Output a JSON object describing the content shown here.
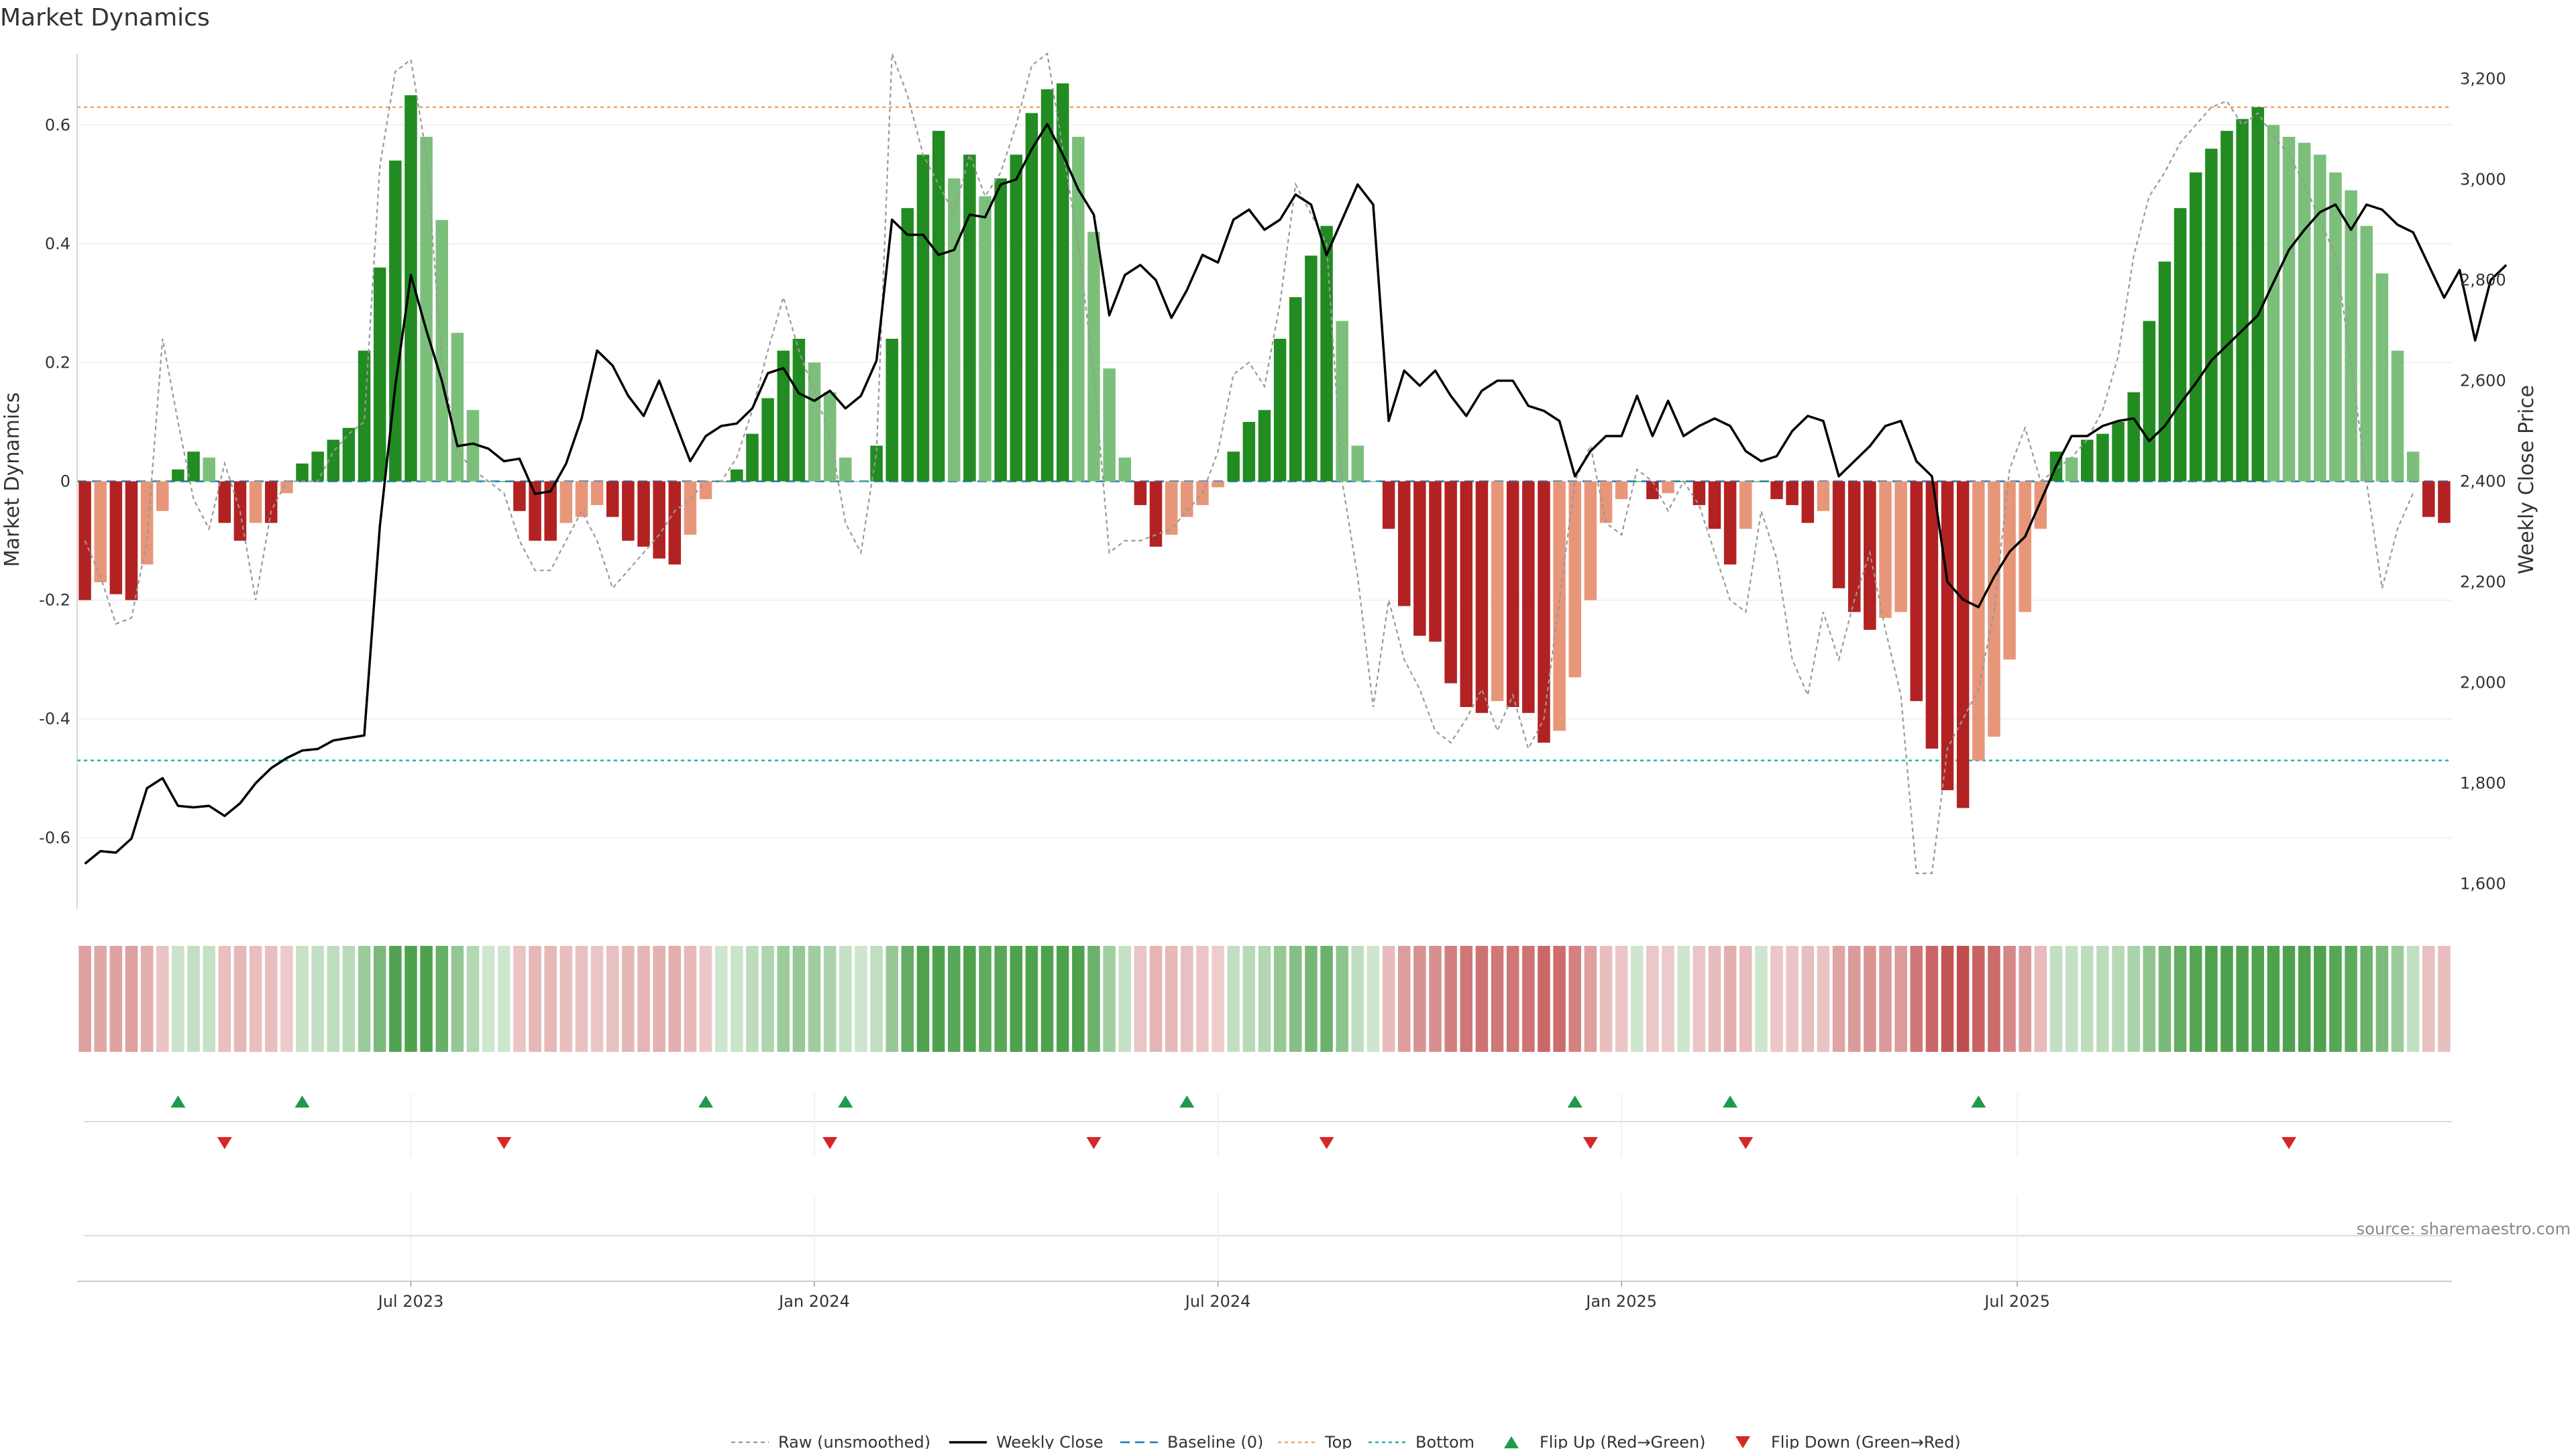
{
  "chart_data": {
    "type": "bar",
    "title": "Market Dynamics",
    "ylabel": "Market Dynamics",
    "y2label": "Weekly Close Price",
    "ylim": [
      -0.72,
      0.72
    ],
    "y2lim": [
      1550,
      3250
    ],
    "yticks": [
      "-0.6",
      "-0.4",
      "-0.2",
      "0",
      "0.2",
      "0.4",
      "0.6"
    ],
    "y2ticks": [
      "1,600",
      "1,800",
      "2,000",
      "2,200",
      "2,400",
      "2,600",
      "2,800",
      "3,000",
      "3,200"
    ],
    "xticks": [
      "Jul 2023",
      "Jan 2024",
      "Jul 2024",
      "Jan 2025",
      "Jul 2025"
    ],
    "top_level": 0.63,
    "bottom_level": -0.47,
    "baseline": 0,
    "momentum": [
      -0.2,
      -0.17,
      -0.19,
      -0.2,
      -0.14,
      -0.05,
      0.02,
      0.05,
      0.04,
      -0.07,
      -0.1,
      -0.07,
      -0.07,
      -0.02,
      0.03,
      0.05,
      0.07,
      0.09,
      0.22,
      0.36,
      0.54,
      0.65,
      0.58,
      0.44,
      0.25,
      0.12,
      0.0,
      0.0,
      -0.05,
      -0.1,
      -0.1,
      -0.07,
      -0.06,
      -0.04,
      -0.06,
      -0.1,
      -0.11,
      -0.13,
      -0.14,
      -0.09,
      -0.03,
      0.0,
      0.02,
      0.08,
      0.14,
      0.22,
      0.24,
      0.2,
      0.15,
      0.04,
      0.0,
      0.06,
      0.24,
      0.46,
      0.55,
      0.59,
      0.51,
      0.55,
      0.48,
      0.51,
      0.55,
      0.62,
      0.66,
      0.67,
      0.58,
      0.42,
      0.19,
      0.04,
      -0.04,
      -0.11,
      -0.09,
      -0.06,
      -0.04,
      -0.01,
      0.05,
      0.1,
      0.12,
      0.24,
      0.31,
      0.38,
      0.43,
      0.27,
      0.06,
      0.0,
      -0.08,
      -0.21,
      -0.26,
      -0.27,
      -0.34,
      -0.38,
      -0.39,
      -0.37,
      -0.38,
      -0.39,
      -0.44,
      -0.42,
      -0.33,
      -0.2,
      -0.07,
      -0.03,
      0.0,
      -0.03,
      -0.02,
      0.0,
      -0.04,
      -0.08,
      -0.14,
      -0.08,
      0.0,
      -0.03,
      -0.04,
      -0.07,
      -0.05,
      -0.18,
      -0.22,
      -0.25,
      -0.23,
      -0.22,
      -0.37,
      -0.45,
      -0.52,
      -0.55,
      -0.47,
      -0.43,
      -0.3,
      -0.22,
      -0.08,
      0.05,
      0.04,
      0.07,
      0.08,
      0.1,
      0.15,
      0.27,
      0.37,
      0.46,
      0.52,
      0.56,
      0.59,
      0.61,
      0.63,
      0.6,
      0.58,
      0.57,
      0.55,
      0.52,
      0.49,
      0.43,
      0.35,
      0.22,
      0.05,
      -0.06,
      -0.07
    ],
    "raw": [
      -0.1,
      -0.16,
      -0.24,
      -0.23,
      -0.1,
      0.24,
      0.1,
      -0.03,
      -0.08,
      0.03,
      -0.05,
      -0.2,
      -0.05,
      0.0,
      0.0,
      0.0,
      0.05,
      0.08,
      0.1,
      0.53,
      0.69,
      0.71,
      0.55,
      0.2,
      0.05,
      0.02,
      0.0,
      -0.02,
      -0.1,
      -0.15,
      -0.15,
      -0.1,
      -0.05,
      -0.1,
      -0.18,
      -0.15,
      -0.12,
      -0.09,
      -0.05,
      -0.03,
      0.0,
      0.0,
      0.04,
      0.12,
      0.22,
      0.31,
      0.22,
      0.15,
      0.08,
      -0.07,
      -0.12,
      0.05,
      0.72,
      0.65,
      0.55,
      0.5,
      0.45,
      0.55,
      0.48,
      0.52,
      0.6,
      0.7,
      0.72,
      0.56,
      0.4,
      0.18,
      -0.12,
      -0.1,
      -0.1,
      -0.09,
      -0.08,
      -0.05,
      -0.02,
      0.05,
      0.18,
      0.2,
      0.16,
      0.3,
      0.5,
      0.45,
      0.4,
      0.0,
      -0.16,
      -0.38,
      -0.2,
      -0.3,
      -0.35,
      -0.42,
      -0.44,
      -0.4,
      -0.35,
      -0.42,
      -0.36,
      -0.45,
      -0.4,
      -0.2,
      0.0,
      0.06,
      -0.07,
      -0.09,
      0.02,
      0.0,
      -0.05,
      0.0,
      -0.04,
      -0.12,
      -0.2,
      -0.22,
      -0.05,
      -0.13,
      -0.3,
      -0.36,
      -0.22,
      -0.3,
      -0.2,
      -0.12,
      -0.25,
      -0.36,
      -0.66,
      -0.66,
      -0.45,
      -0.4,
      -0.35,
      -0.22,
      0.02,
      0.09,
      0.0,
      0.02,
      0.04,
      0.07,
      0.12,
      0.21,
      0.38,
      0.48,
      0.52,
      0.57,
      0.6,
      0.63,
      0.64,
      0.6,
      0.62,
      0.58,
      0.55,
      0.5,
      0.44,
      0.38,
      0.2,
      0.0,
      -0.18,
      -0.08,
      -0.02
    ],
    "weekly_close": [
      1640,
      1665,
      1662,
      1690,
      1790,
      1810,
      1755,
      1752,
      1755,
      1735,
      1760,
      1800,
      1830,
      1850,
      1865,
      1868,
      1885,
      1890,
      1895,
      2310,
      2590,
      2810,
      2700,
      2600,
      2470,
      2475,
      2465,
      2440,
      2445,
      2375,
      2380,
      2435,
      2525,
      2660,
      2630,
      2570,
      2530,
      2600,
      2520,
      2440,
      2490,
      2510,
      2515,
      2545,
      2615,
      2625,
      2575,
      2560,
      2580,
      2545,
      2570,
      2640,
      2920,
      2890,
      2890,
      2850,
      2860,
      2930,
      2925,
      2990,
      3000,
      3060,
      3110,
      3050,
      2980,
      2930,
      2730,
      2810,
      2830,
      2800,
      2725,
      2780,
      2850,
      2835,
      2920,
      2940,
      2900,
      2920,
      2970,
      2950,
      2850,
      2920,
      2990,
      2950,
      2520,
      2620,
      2590,
      2620,
      2570,
      2530,
      2580,
      2600,
      2600,
      2550,
      2540,
      2520,
      2410,
      2460,
      2490,
      2490,
      2570,
      2490,
      2560,
      2490,
      2510,
      2525,
      2510,
      2460,
      2440,
      2450,
      2500,
      2530,
      2520,
      2410,
      2440,
      2470,
      2510,
      2520,
      2440,
      2410,
      2200,
      2165,
      2150,
      2210,
      2260,
      2290,
      2360,
      2430,
      2490,
      2490,
      2510,
      2520,
      2525,
      2480,
      2510,
      2555,
      2595,
      2640,
      2670,
      2700,
      2730,
      2795,
      2860,
      2900,
      2935,
      2950,
      2900,
      2950,
      2940,
      2910,
      2895,
      2830,
      2765,
      2820,
      2680,
      2800,
      2830
    ],
    "flip_up_idx": [
      6,
      14,
      40,
      49,
      71,
      96,
      106,
      122
    ],
    "flip_down_idx": [
      9,
      27,
      48,
      65,
      80,
      97,
      107,
      142
    ],
    "legend": [
      "Raw (unsmoothed)",
      "Weekly Close",
      "Baseline (0)",
      "Top",
      "Bottom",
      "Flip Up (Red→Green)",
      "Flip Down (Green→Red)"
    ]
  },
  "colors": {
    "pos_strong": "#228b22",
    "pos_fade": "#7bbf7b",
    "neg_strong": "#b22222",
    "neg_fade": "#e8967a",
    "top_line": "#f4a460",
    "bottom_line": "#20b2aa",
    "baseline": "#1f77b4",
    "raw_line": "#999999",
    "close_line": "#000000",
    "flip_up": "#1e9a4a",
    "flip_down": "#d62728"
  },
  "source": "source: sharemaestro.com"
}
